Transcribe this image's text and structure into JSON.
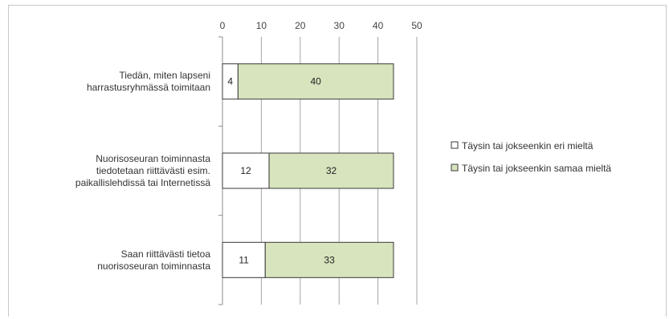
{
  "chart_data": {
    "type": "bar",
    "orientation": "horizontal",
    "stacked": true,
    "categories": [
      [
        "Tiedän, miten lapseni",
        "harrastusryhmässä toimitaan"
      ],
      [
        "Nuorisoseuran toiminnasta",
        "tiedotetaan riittävästi esim.",
        "paikallislehdissä tai Internetissä"
      ],
      [
        "Saan riittävästi tietoa",
        "nuorisoseuran toiminnasta"
      ]
    ],
    "series": [
      {
        "name": "Täysin tai jokseenkin eri mieltä",
        "values": [
          4,
          12,
          11
        ],
        "color": "#ffffff"
      },
      {
        "name": "Täysin tai jokseenkin samaa mieltä",
        "values": [
          40,
          32,
          33
        ],
        "color": "#d7e4bd"
      }
    ],
    "xticks": [
      "0",
      "10",
      "20",
      "30",
      "40",
      "50"
    ],
    "xlim": [
      0,
      50
    ],
    "grid": true,
    "legend_position": "right",
    "xlabel": "",
    "ylabel": "",
    "title": ""
  }
}
